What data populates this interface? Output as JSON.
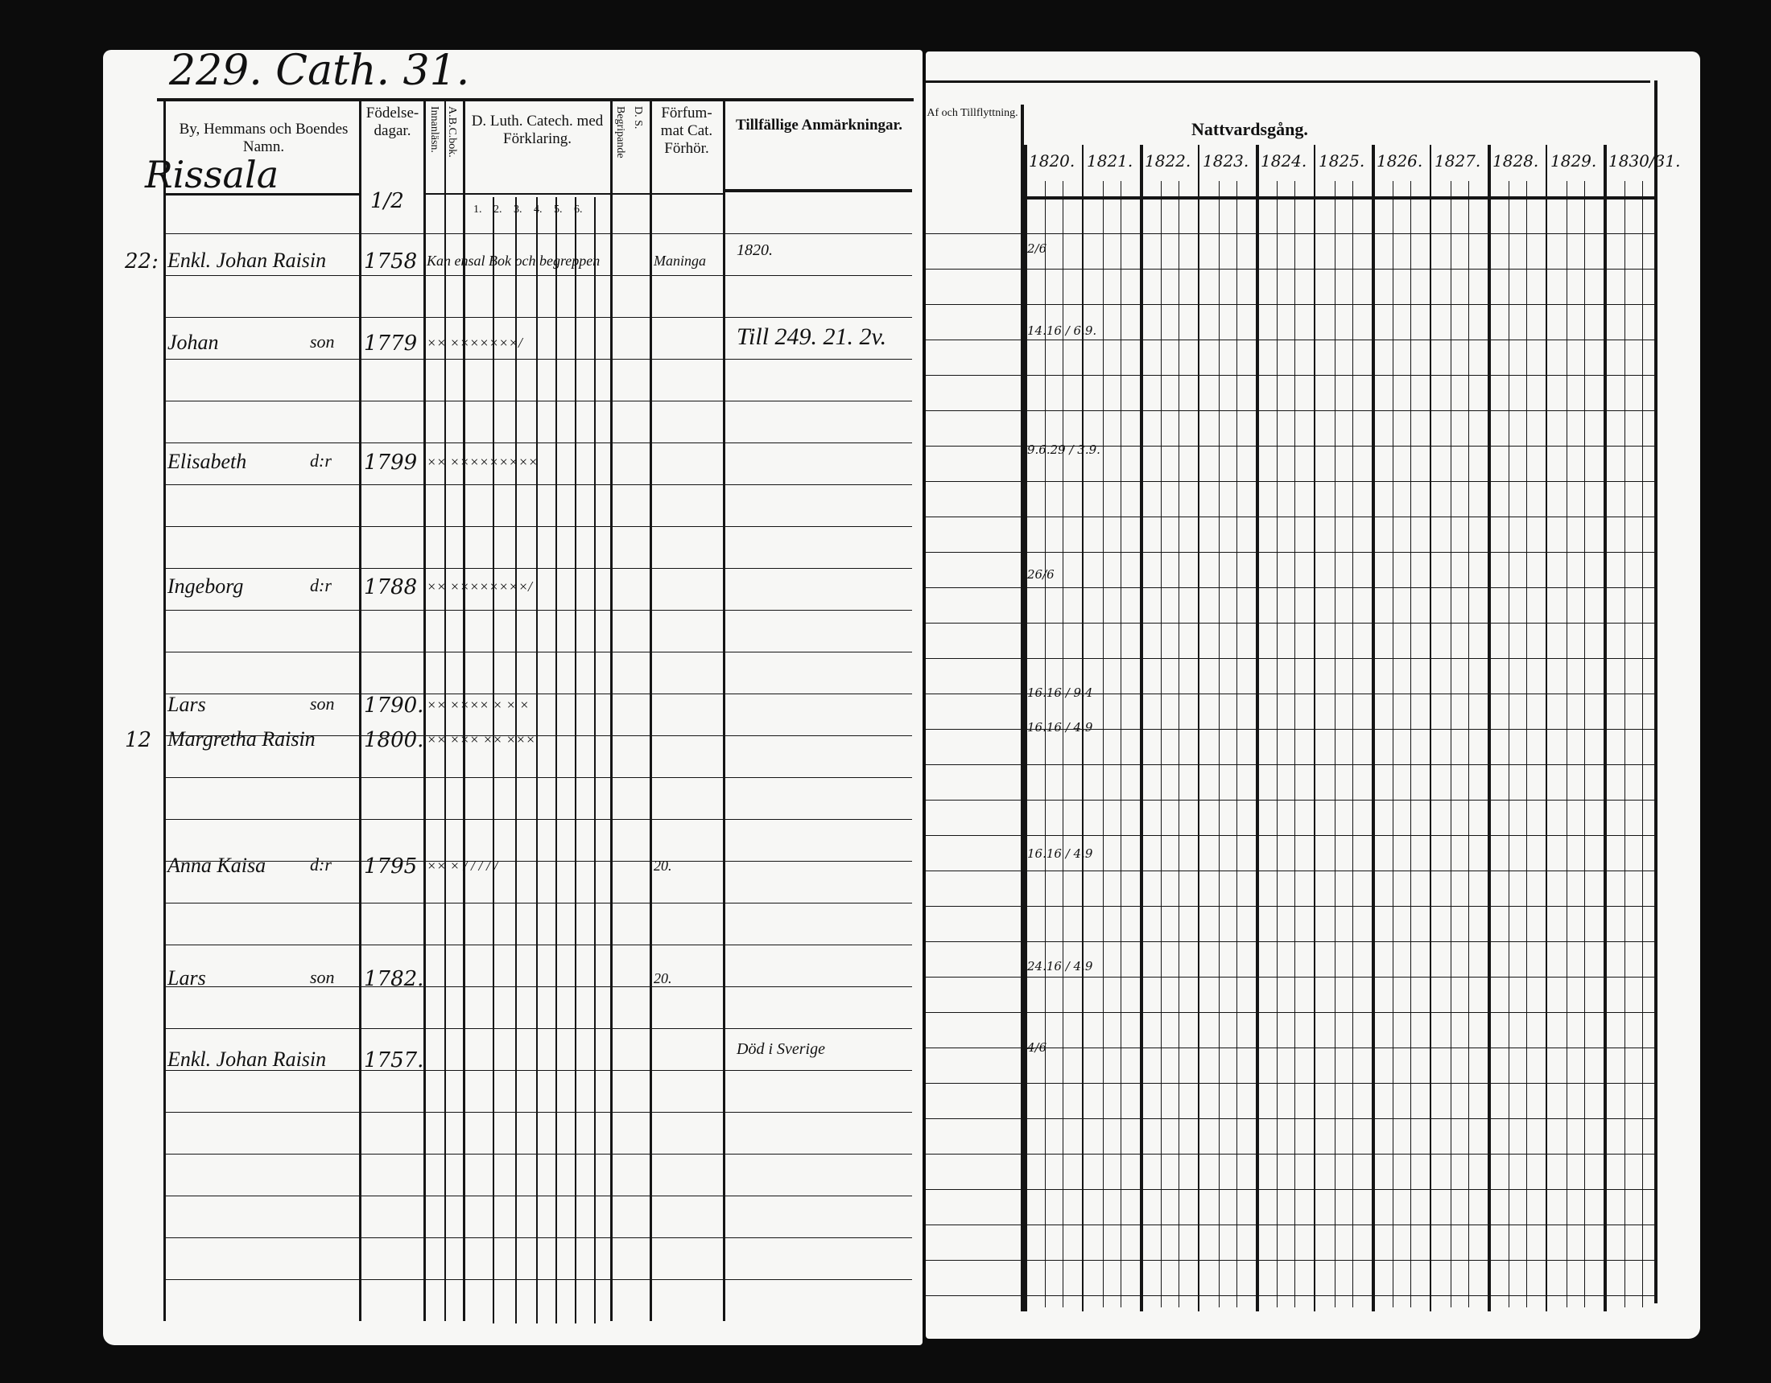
{
  "left_page": {
    "page_heading": "229. Cath. 31.",
    "village": "Rissala",
    "headers": {
      "name": "By, Hemmans och Boendes Namn.",
      "birth": "Födelse-dagar.",
      "abc": "A.B.C.bok.",
      "reading": "Innanläsn.",
      "catechism": "D. Luth. Catech. med Förklaring.",
      "understanding": "Begripande",
      "ds": "D. S.",
      "forfum": "Förfum-mat Cat. Förhör.",
      "notes": "Tillfällige Anmärkningar."
    },
    "birth_subheader": "1/2",
    "catechism_subcols": [
      "1.",
      "2.",
      "3.",
      "4.",
      "5.",
      "6."
    ],
    "entries": [
      {
        "margin": "22:",
        "name": "Enkl. Johan Raisin",
        "relation": "",
        "birth": "1758",
        "marks": "Kan ensal Bok och begreppen",
        "forfum": "Maninga",
        "note": "1820."
      },
      {
        "margin": "",
        "name": "Johan",
        "relation": "son",
        "birth": "1779",
        "marks": "×× ×××××××/",
        "forfum": "",
        "note": "Till 249. 21. 2v."
      },
      {
        "margin": "",
        "name": "Elisabeth",
        "relation": "d:r",
        "birth": "1799",
        "marks": "×× ×××××××××",
        "forfum": "",
        "note": ""
      },
      {
        "margin": "",
        "name": "Ingeborg",
        "relation": "d:r",
        "birth": "1788",
        "marks": "×× ××××××××/",
        "forfum": "",
        "note": ""
      },
      {
        "margin": "",
        "name": "Lars",
        "relation": "son",
        "birth": "1790.",
        "marks": "×× ×××× × × ×",
        "forfum": "",
        "note": ""
      },
      {
        "margin": "12",
        "name": "Margretha Raisin",
        "relation": "",
        "birth": "1800.",
        "marks": "×× ××× ×× ×××",
        "forfum": "",
        "note": ""
      },
      {
        "margin": "",
        "name": "Anna Kaisa",
        "relation": "d:r",
        "birth": "1795",
        "marks": "×× × / / / / /",
        "forfum": "20.",
        "note": ""
      },
      {
        "margin": "",
        "name": "Lars",
        "relation": "son",
        "birth": "1782.",
        "marks": "",
        "forfum": "20.",
        "note": ""
      },
      {
        "margin": "",
        "name": "Enkl. Johan Raisin",
        "relation": "",
        "birth": "1757.",
        "marks": "",
        "forfum": "",
        "note": "Död i Sverige"
      }
    ]
  },
  "right_page": {
    "moving_header": "Af och Tillflyttning.",
    "communion_header": "Nattvardsgång.",
    "years": [
      "1820.",
      "1821.",
      "1822.",
      "1823.",
      "1824.",
      "1825.",
      "1826.",
      "1827.",
      "1828.",
      "1829.",
      "1830/31."
    ],
    "communion_1820": [
      "2/6",
      "14.16 / 6.9.",
      "9.6.29 / 3.9.",
      "26/6",
      "16.16 / 9.4",
      "16.16 / 4.9",
      "16.16 / 4.9",
      "24.16 / 4.9",
      "4/6"
    ]
  }
}
